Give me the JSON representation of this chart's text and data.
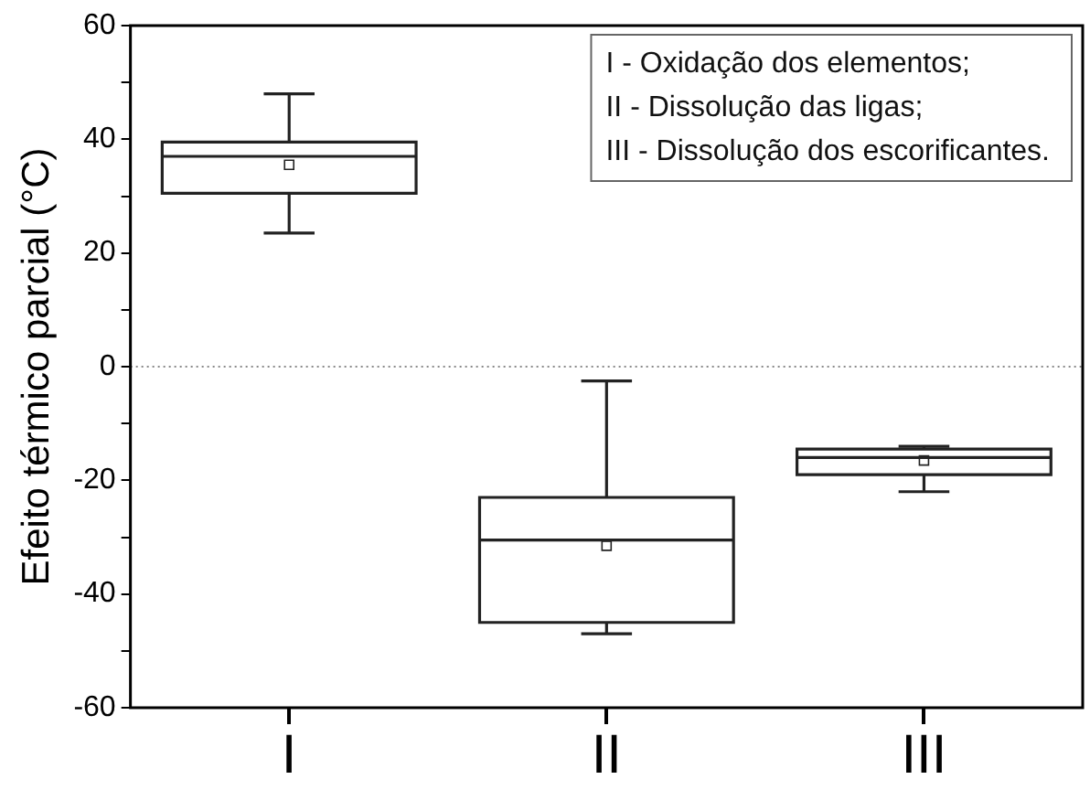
{
  "chart_data": {
    "type": "box",
    "ylabel": "Efeito térmico parcial (°C)",
    "categories": [
      "I",
      "II",
      "III"
    ],
    "boxes": [
      {
        "low": 23.5,
        "q1": 30.5,
        "median": 37,
        "q3": 39.5,
        "high": 48,
        "mean": 35.5
      },
      {
        "low": -47,
        "q1": -45,
        "median": -30.5,
        "q3": -23,
        "high": -2.5,
        "mean": -31.5
      },
      {
        "low": -22,
        "q1": -19,
        "median": -16,
        "q3": -14.5,
        "high": -14,
        "mean": -16.5
      }
    ],
    "color": "#222222",
    "ylim": [
      -60,
      60
    ],
    "yticks": [
      -60,
      {
        "value": -50,
        "label": null
      },
      -40,
      {
        "value": -30,
        "label": null
      },
      -20,
      {
        "value": -10,
        "label": null
      },
      0,
      {
        "value": 10,
        "label": null
      },
      20,
      {
        "value": 30,
        "label": null
      },
      40,
      {
        "value": 50,
        "label": null
      },
      60
    ],
    "ref_lines": [
      {
        "axis": "y",
        "value": 0,
        "color": "#888888",
        "line_style": "dotted"
      }
    ],
    "annotations": [
      "I - Oxidação dos elementos;",
      "II - Dissolução das ligas;",
      "III - Dissolução dos escorificantes."
    ],
    "grid": false,
    "legend": false
  }
}
